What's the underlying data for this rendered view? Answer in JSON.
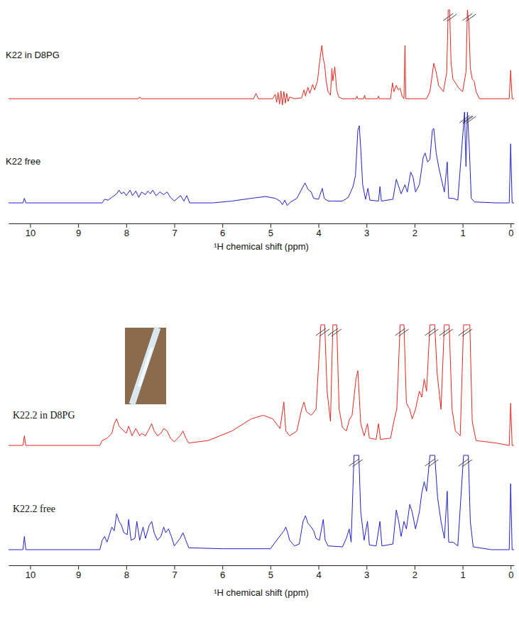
{
  "chart_data": [
    {
      "type": "line",
      "x_label": "¹H chemical shift (ppm)",
      "xlim": [
        10.45,
        -0.07
      ],
      "xticks": [
        0,
        1,
        2,
        3,
        4,
        5,
        6,
        7,
        8,
        9,
        10
      ],
      "tick_labels": "x",
      "series": [
        {
          "name": "K22 in D8PG",
          "color": "#e3261e",
          "x": [
            10.5,
            7.75,
            7.72,
            7.69,
            5.35,
            5.3,
            5.25,
            4.95,
            4.9,
            4.87,
            4.84,
            4.81,
            4.78,
            4.75,
            4.72,
            4.69,
            4.66,
            4.63,
            4.6,
            4.5,
            4.35,
            4.3,
            4.27,
            4.22,
            4.18,
            4.12,
            4.08,
            4.02,
            3.97,
            3.93,
            3.9,
            3.87,
            3.84,
            3.8,
            3.75,
            3.72,
            3.7,
            3.66,
            3.62,
            3.58,
            3.5,
            3.22,
            3.2,
            3.18,
            3.06,
            3.04,
            3.02,
            2.77,
            2.75,
            2.73,
            2.5,
            2.46,
            2.43,
            2.38,
            2.34,
            2.3,
            2.26,
            2.22,
            2.2,
            2.18,
            1.75,
            1.68,
            1.6,
            1.55,
            1.5,
            1.4,
            1.33,
            1.3,
            1.27,
            1.24,
            1.2,
            1.15,
            1.08,
            1.0,
            0.93,
            0.9,
            0.87,
            0.84,
            0.8,
            0.76,
            0.72,
            0.65,
            0.03,
            0.0,
            -0.03,
            -0.07
          ],
          "values": [
            0,
            0,
            2,
            0,
            0,
            6,
            0,
            0,
            5,
            -4,
            7,
            -6,
            9,
            -7,
            8,
            -5,
            6,
            -3,
            2,
            0,
            1,
            10,
            3,
            13,
            6,
            16,
            10,
            20,
            44,
            60,
            45,
            38,
            20,
            8,
            4,
            34,
            20,
            36,
            10,
            2,
            0,
            0,
            3,
            0,
            0,
            4,
            0,
            0,
            3,
            0,
            0,
            18,
            8,
            15,
            10,
            12,
            3,
            0,
            60,
            0,
            0,
            8,
            40,
            30,
            15,
            8,
            30,
            100,
            100,
            40,
            22,
            18,
            12,
            8,
            30,
            100,
            85,
            35,
            22,
            20,
            8,
            0,
            0,
            32,
            0,
            0
          ]
        },
        {
          "name": "K22 free",
          "color": "#2020c8",
          "x": [
            10.5,
            10.15,
            10.12,
            10.09,
            8.5,
            8.45,
            8.38,
            8.3,
            8.2,
            8.15,
            8.1,
            8.05,
            8.0,
            7.92,
            7.87,
            7.8,
            7.74,
            7.68,
            7.6,
            7.55,
            7.5,
            7.45,
            7.38,
            7.3,
            7.22,
            7.15,
            7.08,
            7.0,
            6.87,
            6.8,
            6.74,
            6.68,
            6.2,
            5.8,
            5.4,
            5.1,
            4.9,
            4.8,
            4.75,
            4.7,
            4.65,
            4.58,
            4.45,
            4.32,
            4.28,
            4.22,
            4.15,
            4.1,
            4.0,
            3.92,
            3.88,
            3.8,
            3.72,
            3.5,
            3.38,
            3.33,
            3.28,
            3.23,
            3.18,
            3.15,
            3.12,
            3.08,
            3.02,
            2.97,
            2.93,
            2.75,
            2.72,
            2.69,
            2.45,
            2.38,
            2.33,
            2.28,
            2.2,
            2.15,
            2.08,
            2.03,
            1.98,
            1.9,
            1.82,
            1.78,
            1.73,
            1.68,
            1.63,
            1.6,
            1.55,
            1.5,
            1.45,
            1.38,
            1.32,
            1.29,
            1.2,
            1.1,
            0.96,
            0.93,
            0.9,
            0.86,
            0.82,
            0.75,
            0.3,
            0.03,
            0.0,
            -0.03,
            -0.07
          ],
          "values": [
            0,
            0,
            5,
            0,
            0,
            4,
            3,
            6,
            10,
            14,
            10,
            12,
            8,
            14,
            8,
            13,
            6,
            12,
            9,
            13,
            10,
            14,
            8,
            12,
            9,
            12,
            6,
            2,
            8,
            2,
            8,
            0,
            0,
            2,
            5,
            7,
            5,
            2,
            -2,
            3,
            -3,
            1,
            5,
            18,
            22,
            15,
            12,
            5,
            4,
            16,
            5,
            2,
            2,
            2,
            6,
            12,
            18,
            30,
            80,
            85,
            60,
            20,
            4,
            16,
            3,
            2,
            18,
            2,
            4,
            26,
            18,
            10,
            20,
            12,
            34,
            28,
            12,
            20,
            50,
            55,
            45,
            48,
            80,
            82,
            55,
            40,
            28,
            12,
            45,
            5,
            5,
            3,
            100,
            40,
            100,
            60,
            5,
            1,
            0,
            0,
            65,
            0,
            0
          ]
        }
      ]
    },
    {
      "type": "line",
      "x_label": "¹H chemical shift (ppm)",
      "xlim": [
        10.45,
        -0.07
      ],
      "xticks": [
        0,
        1,
        2,
        3,
        4,
        5,
        6,
        7,
        8,
        9,
        10
      ],
      "tick_labels": "x",
      "series": [
        {
          "name": "K22.2 in D8PG",
          "color": "#e3261e",
          "x": [
            10.5,
            10.15,
            10.12,
            10.09,
            8.55,
            8.5,
            8.4,
            8.3,
            8.25,
            8.2,
            8.15,
            8.1,
            8.0,
            7.95,
            7.88,
            7.8,
            7.72,
            7.68,
            7.6,
            7.52,
            7.47,
            7.42,
            7.35,
            7.28,
            7.22,
            7.15,
            7.08,
            7.0,
            6.88,
            6.82,
            6.76,
            6.7,
            6.3,
            5.8,
            5.4,
            5.15,
            4.95,
            4.8,
            4.72,
            4.68,
            4.6,
            4.45,
            4.35,
            4.3,
            4.25,
            4.15,
            4.05,
            3.95,
            3.92,
            3.87,
            3.82,
            3.75,
            3.7,
            3.67,
            3.62,
            3.57,
            3.5,
            3.42,
            3.35,
            3.3,
            3.22,
            3.18,
            3.12,
            3.05,
            2.98,
            2.94,
            2.8,
            2.75,
            2.71,
            2.5,
            2.42,
            2.37,
            2.3,
            2.26,
            2.22,
            2.17,
            2.1,
            2.05,
            1.98,
            1.9,
            1.85,
            1.8,
            1.75,
            1.68,
            1.63,
            1.58,
            1.53,
            1.45,
            1.38,
            1.33,
            1.28,
            1.22,
            1.15,
            1.05,
            0.98,
            0.94,
            0.9,
            0.85,
            0.8,
            0.72,
            0.3,
            0.03,
            0.0,
            -0.03,
            -0.07
          ],
          "values": [
            0,
            0,
            8,
            0,
            0,
            4,
            6,
            10,
            18,
            22,
            16,
            14,
            10,
            16,
            8,
            14,
            8,
            10,
            8,
            14,
            18,
            12,
            8,
            10,
            14,
            12,
            6,
            3,
            8,
            12,
            6,
            2,
            4,
            12,
            22,
            25,
            22,
            14,
            36,
            12,
            8,
            12,
            30,
            36,
            28,
            25,
            30,
            100,
            100,
            100,
            45,
            20,
            100,
            100,
            100,
            30,
            15,
            12,
            22,
            25,
            55,
            62,
            18,
            8,
            18,
            6,
            5,
            18,
            5,
            6,
            22,
            30,
            100,
            100,
            100,
            35,
            30,
            22,
            30,
            45,
            40,
            55,
            45,
            100,
            100,
            100,
            60,
            30,
            100,
            100,
            100,
            30,
            12,
            8,
            100,
            100,
            100,
            100,
            20,
            4,
            2,
            0,
            35,
            0,
            0
          ]
        },
        {
          "name": "K22.2 free",
          "color": "#2020c8",
          "x": [
            10.5,
            10.15,
            10.12,
            10.09,
            8.55,
            8.5,
            8.45,
            8.4,
            8.35,
            8.3,
            8.25,
            8.2,
            8.15,
            8.1,
            8.05,
            7.98,
            7.95,
            7.9,
            7.82,
            7.78,
            7.72,
            7.65,
            7.6,
            7.52,
            7.47,
            7.42,
            7.35,
            7.28,
            7.22,
            7.18,
            7.12,
            7.06,
            7.0,
            6.88,
            6.82,
            6.76,
            6.7,
            6.0,
            5.0,
            4.72,
            4.68,
            4.64,
            4.6,
            4.5,
            4.4,
            4.32,
            4.27,
            4.22,
            4.15,
            4.1,
            4.05,
            3.98,
            3.9,
            3.86,
            3.8,
            3.5,
            3.42,
            3.36,
            3.32,
            3.26,
            3.22,
            3.16,
            3.12,
            3.05,
            2.98,
            2.94,
            2.8,
            2.72,
            2.68,
            2.45,
            2.38,
            2.33,
            2.28,
            2.22,
            2.17,
            2.1,
            2.05,
            1.98,
            1.9,
            1.85,
            1.8,
            1.75,
            1.68,
            1.63,
            1.58,
            1.52,
            1.45,
            1.38,
            1.32,
            1.29,
            1.2,
            1.1,
            0.98,
            0.93,
            0.88,
            0.84,
            0.78,
            0.4,
            0.03,
            0.0,
            -0.03,
            -0.07
          ],
          "values": [
            0,
            0,
            14,
            0,
            0,
            10,
            14,
            8,
            16,
            24,
            20,
            38,
            30,
            26,
            18,
            16,
            32,
            10,
            12,
            30,
            10,
            24,
            12,
            26,
            30,
            18,
            10,
            14,
            24,
            18,
            22,
            14,
            4,
            12,
            18,
            10,
            2,
            1,
            1,
            20,
            24,
            18,
            10,
            4,
            6,
            30,
            36,
            28,
            24,
            20,
            12,
            10,
            32,
            10,
            4,
            3,
            12,
            22,
            8,
            100,
            100,
            100,
            40,
            10,
            30,
            5,
            4,
            30,
            4,
            6,
            42,
            30,
            14,
            30,
            22,
            48,
            40,
            22,
            40,
            60,
            72,
            62,
            100,
            100,
            100,
            55,
            30,
            12,
            62,
            8,
            8,
            4,
            100,
            100,
            100,
            30,
            3,
            0,
            0,
            70,
            0,
            0
          ]
        }
      ]
    }
  ]
}
